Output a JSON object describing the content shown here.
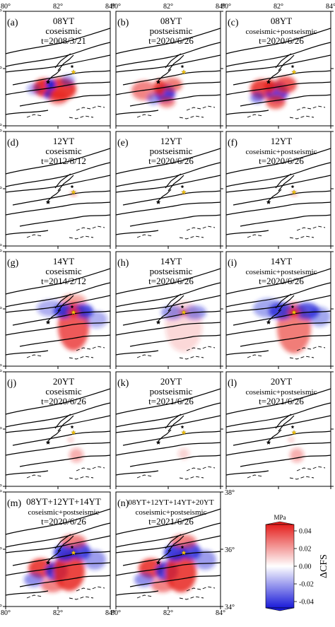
{
  "figure": {
    "panels": [
      {
        "letter": "(a)",
        "lines": [
          "08YT",
          "coseismic",
          "t=2008/3/21"
        ],
        "event": "08YT",
        "kind": "co",
        "pattern": "08"
      },
      {
        "letter": "(b)",
        "lines": [
          "08YT",
          "postseismic",
          "t=2020/6/26"
        ],
        "event": "08YT",
        "kind": "post",
        "pattern": "08"
      },
      {
        "letter": "(c)",
        "lines": [
          "08YT",
          "coseismic+postseismic",
          "t=2020/6/26"
        ],
        "event": "08YT",
        "kind": "both",
        "pattern": "08"
      },
      {
        "letter": "(d)",
        "lines": [
          "12YT",
          "coseismic",
          "t=2012/8/12"
        ],
        "event": "12YT",
        "kind": "co",
        "pattern": "12"
      },
      {
        "letter": "(e)",
        "lines": [
          "12YT",
          "postseismic",
          "t=2020/6/26"
        ],
        "event": "12YT",
        "kind": "post",
        "pattern": "12"
      },
      {
        "letter": "(f)",
        "lines": [
          "12YT",
          "coseismic+postseismic",
          "t=2020/6/26"
        ],
        "event": "12YT",
        "kind": "both",
        "pattern": "12"
      },
      {
        "letter": "(g)",
        "lines": [
          "14YT",
          "coseismic",
          "t=2014/2/12"
        ],
        "event": "14YT",
        "kind": "co",
        "pattern": "14"
      },
      {
        "letter": "(h)",
        "lines": [
          "14YT",
          "postseismic",
          "t=2020/6/26"
        ],
        "event": "14YT",
        "kind": "post",
        "pattern": "14"
      },
      {
        "letter": "(i)",
        "lines": [
          "14YT",
          "coseismic+postseismic",
          "t=2020/6/26"
        ],
        "event": "14YT",
        "kind": "both",
        "pattern": "14"
      },
      {
        "letter": "(j)",
        "lines": [
          "20YT",
          "coseismic",
          "t=2020/6/26"
        ],
        "event": "20YT",
        "kind": "co",
        "pattern": "20"
      },
      {
        "letter": "(k)",
        "lines": [
          "20YT",
          "postseismic",
          "t=2021/6/26"
        ],
        "event": "20YT",
        "kind": "post",
        "pattern": "20"
      },
      {
        "letter": "(l)",
        "lines": [
          "20YT",
          "coseismic+postseismic",
          "t=2021/6/26"
        ],
        "event": "20YT",
        "kind": "both",
        "pattern": "20"
      },
      {
        "letter": "(m)",
        "lines": [
          "08YT+12YT+14YT",
          "coseismic+postseismic",
          "t=2020/6/26"
        ],
        "event": "08YT+12YT+14YT",
        "kind": "both",
        "pattern": "sum3"
      },
      {
        "letter": "(n)",
        "lines": [
          "08YT+12YT+14YT+20YT",
          "coseismic+postseismic",
          "t=2021/6/26"
        ],
        "event": "08YT+12YT+14YT+20YT",
        "kind": "both",
        "pattern": "sum4"
      }
    ],
    "lon_ticks": [
      "80",
      "82",
      "84"
    ],
    "lat_ticks": [
      "38",
      "36",
      "34"
    ],
    "degree_mark": "°",
    "colorbar": {
      "unit": "MPa",
      "label": "ΔCFS",
      "tick_labels": [
        "0.04",
        "0.02",
        "0.00",
        "-0.02",
        "-0.04"
      ],
      "range": [
        -0.04,
        0.04
      ],
      "colors": {
        "max": "#e5201e",
        "mid": "#ffffff",
        "min": "#1a1bd8"
      }
    },
    "colors": {
      "positive": "#e8231f",
      "negative": "#1f22d8",
      "fault": "#000000",
      "epicenter_main": "#000000",
      "epicenter_secondary": "#f3c20b"
    },
    "markers": [
      "black-star",
      "yellow-star"
    ]
  }
}
